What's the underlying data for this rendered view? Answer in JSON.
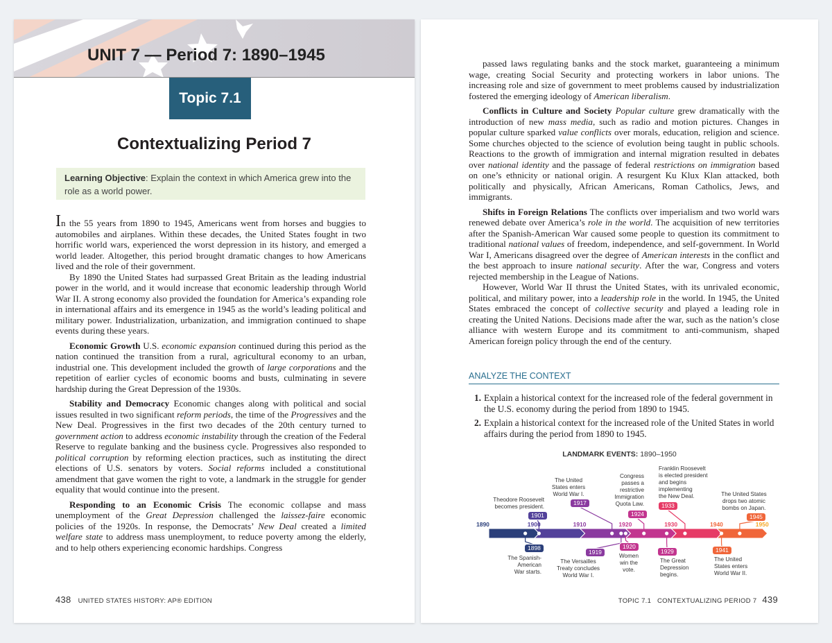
{
  "left_page": {
    "unit_title": "UNIT 7 — Period 7: 1890–1945",
    "topic_label": "Topic 7.1",
    "chapter_title": "Contextualizing Period 7",
    "learning_objective": {
      "label": "Learning Objective",
      "text": ": Explain the context in which America grew into the role as a world power."
    },
    "paragraphs": [
      [
        [
          "I",
          ""
        ],
        [
          "n the 55 years from 1890 to 1945, Americans went from horses and buggies to automobiles and airplanes. Within these decades, the United States fought in two horrific world wars, experienced the worst depression in its history, and emerged a world leader. Altogether, this period brought dramatic changes to how Americans lived and the role of their government.",
          ""
        ]
      ],
      [
        [
          "By 1890 the United States had surpassed Great Britain as the leading industrial power in the world, and it would increase that economic leadership through World War II. A strong economy also provided the foundation for America’s expanding role in international affairs and its emergence in 1945 as the world’s leading political and military power. Industrialization, urbanization, and immigration continued to shape events during these years.",
          ""
        ]
      ],
      [
        [
          "Economic Growth",
          "b"
        ],
        [
          " U.S. ",
          ""
        ],
        [
          "economic expansion",
          "i"
        ],
        [
          " continued during this period as the nation continued the transition from a rural, agricultural economy to an urban, industrial one. This development included the growth of ",
          ""
        ],
        [
          "large corporations",
          "i"
        ],
        [
          " and the repetition of earlier cycles of economic booms and busts, culminating in severe hardship during the Great Depression of the 1930s.",
          ""
        ]
      ],
      [
        [
          "Stability and Democracy",
          "b"
        ],
        [
          " Economic changes along with political and social issues resulted in two significant ",
          ""
        ],
        [
          "reform periods",
          "i"
        ],
        [
          ", the time of the ",
          ""
        ],
        [
          "Progressives",
          "i"
        ],
        [
          " and the New Deal. Progressives in the first two decades of the 20th century turned to ",
          ""
        ],
        [
          "government action",
          "i"
        ],
        [
          " to address ",
          ""
        ],
        [
          "economic instability",
          "i"
        ],
        [
          " through the creation of the Federal Reserve to regulate banking and the business cycle. Progressives also responded to ",
          ""
        ],
        [
          "political corruption",
          "i"
        ],
        [
          " by reforming election practices, such as instituting the direct elections of U.S. senators by voters. ",
          ""
        ],
        [
          "Social reforms",
          "i"
        ],
        [
          " included a constitutional amendment that gave women the right to vote, a landmark in the struggle for gender equality that would continue into the present.",
          ""
        ]
      ],
      [
        [
          "Responding to an Economic Crisis",
          "b"
        ],
        [
          " The economic collapse and mass unemployment of the ",
          ""
        ],
        [
          "Great Depression",
          "i"
        ],
        [
          " challenged the ",
          ""
        ],
        [
          "laissez-faire",
          "i"
        ],
        [
          " economic policies of the 1920s. In response, the Democrats’ ",
          ""
        ],
        [
          "New Deal",
          "i"
        ],
        [
          " created a ",
          ""
        ],
        [
          "limited welfare state",
          "i"
        ],
        [
          " to address mass unemployment, to reduce poverty among the elderly, and to help others experiencing economic hardships. Congress",
          ""
        ]
      ]
    ],
    "page_number": "438",
    "running_footer": "UNITED STATES HISTORY: AP® EDITION"
  },
  "right_page": {
    "paragraphs": [
      [
        [
          "passed laws regulating banks and the stock market, guaranteeing a minimum wage, creating Social Security and protecting workers in labor unions. The increasing role and size of government to meet problems caused by industrialization fostered the emerging ideology of ",
          ""
        ],
        [
          "American liberalism",
          "i"
        ],
        [
          ".",
          ""
        ]
      ],
      [
        [
          "Conflicts in Culture and Society",
          "b"
        ],
        [
          " ",
          ""
        ],
        [
          "Popular culture",
          "i"
        ],
        [
          " grew dramatically with the introduction of new ",
          ""
        ],
        [
          "mass media",
          "i"
        ],
        [
          ", such as radio and motion pictures. Changes in popular culture sparked ",
          ""
        ],
        [
          "value conflicts",
          "i"
        ],
        [
          " over morals, education, religion and science. Some churches objected to the science of evolution being taught in public schools. Reactions to the growth of immigration and internal migration resulted in debates over ",
          ""
        ],
        [
          "national identity",
          "i"
        ],
        [
          " and the passage of federal ",
          ""
        ],
        [
          "restrictions on immigration",
          "i"
        ],
        [
          " based on one’s ethnicity or national origin. A resurgent Ku Klux Klan attacked, both politically and physically, African Americans, Roman Catholics, Jews, and immigrants.",
          ""
        ]
      ],
      [
        [
          "Shifts in Foreign Relations",
          "b"
        ],
        [
          " The conflicts over imperialism and two world wars renewed debate over America’s ",
          ""
        ],
        [
          "role in the world",
          "i"
        ],
        [
          ". The acquisition of new territories after the Spanish-American War caused some people to question its commitment to traditional ",
          ""
        ],
        [
          "national values",
          "i"
        ],
        [
          " of freedom, independence, and self-government. In World War I, Americans disagreed over the degree of ",
          ""
        ],
        [
          "American interests",
          "i"
        ],
        [
          " in the conflict and the best approach to insure ",
          ""
        ],
        [
          "national security",
          "i"
        ],
        [
          ". After the war, Congress and voters rejected membership in the League of Nations.",
          ""
        ]
      ],
      [
        [
          "However, World War II thrust the United States, with its unrivaled economic, political, and military power, into a ",
          ""
        ],
        [
          "leadership role",
          "i"
        ],
        [
          " in the world. In 1945, the United States embraced the concept of ",
          ""
        ],
        [
          "collective security",
          "i"
        ],
        [
          " and played a leading role in creating the United Nations. Decisions made after the war, such as the nation’s close alliance with western Europe and its commitment to anti-communism, shaped American foreign policy through the end of the century.",
          ""
        ]
      ]
    ],
    "analyze_heading": "ANALYZE THE CONTEXT",
    "questions": [
      {
        "num": "1.",
        "text": "Explain a historical context for the increased role of the federal government in the U.S. economy during the period from 1890 to 1945."
      },
      {
        "num": "2.",
        "text": "Explain a historical context for the increased role of the United States in world affairs during the period from 1890 to 1945."
      }
    ],
    "timeline": {
      "title": "LANDMARK EVENTS:",
      "range": "1890–1950",
      "decades": [
        {
          "year": "1890",
          "color": "#2b3f7a"
        },
        {
          "year": "1900",
          "color": "#52419a"
        },
        {
          "year": "1910",
          "color": "#8a3a9f"
        },
        {
          "year": "1920",
          "color": "#c2358f"
        },
        {
          "year": "1930",
          "color": "#e63b66"
        },
        {
          "year": "1940",
          "color": "#f0663a"
        },
        {
          "year": "1950",
          "color": "#f5a623"
        }
      ],
      "events": [
        {
          "year": "1898",
          "text": "The Spanish-\nAmerican\nWar starts.",
          "side": "below"
        },
        {
          "year": "1901",
          "text": "Theodore Roosevelt\nbecomes president.",
          "side": "above"
        },
        {
          "year": "1917",
          "text": "The United\nStates enters\nWorld War I.",
          "side": "above"
        },
        {
          "year": "1919",
          "text": "The Versailles\nTreaty concludes\nWorld War I.",
          "side": "below"
        },
        {
          "year": "1920",
          "text": "Women\nwin the\nvote.",
          "side": "below"
        },
        {
          "year": "1924",
          "text": "Congress\npasses a\nrestrictive\nImmigration\nQuota Law.",
          "side": "above"
        },
        {
          "year": "1929",
          "text": "The Great\nDepression\nbegins.",
          "side": "below"
        },
        {
          "year": "1933",
          "text": "Franklin Roosevelt\nis elected president\nand begins\nimplementing\nthe New Deal.",
          "side": "above"
        },
        {
          "year": "1941",
          "text": "The United\nStates enters\nWorld War II.",
          "side": "below"
        },
        {
          "year": "1945",
          "text": "The United States\ndrops two atomic\nbombs on Japan.",
          "side": "above"
        }
      ]
    },
    "running_footer": "TOPIC 7.1   CONTEXTUALIZING PERIOD 7",
    "page_number": "439"
  }
}
